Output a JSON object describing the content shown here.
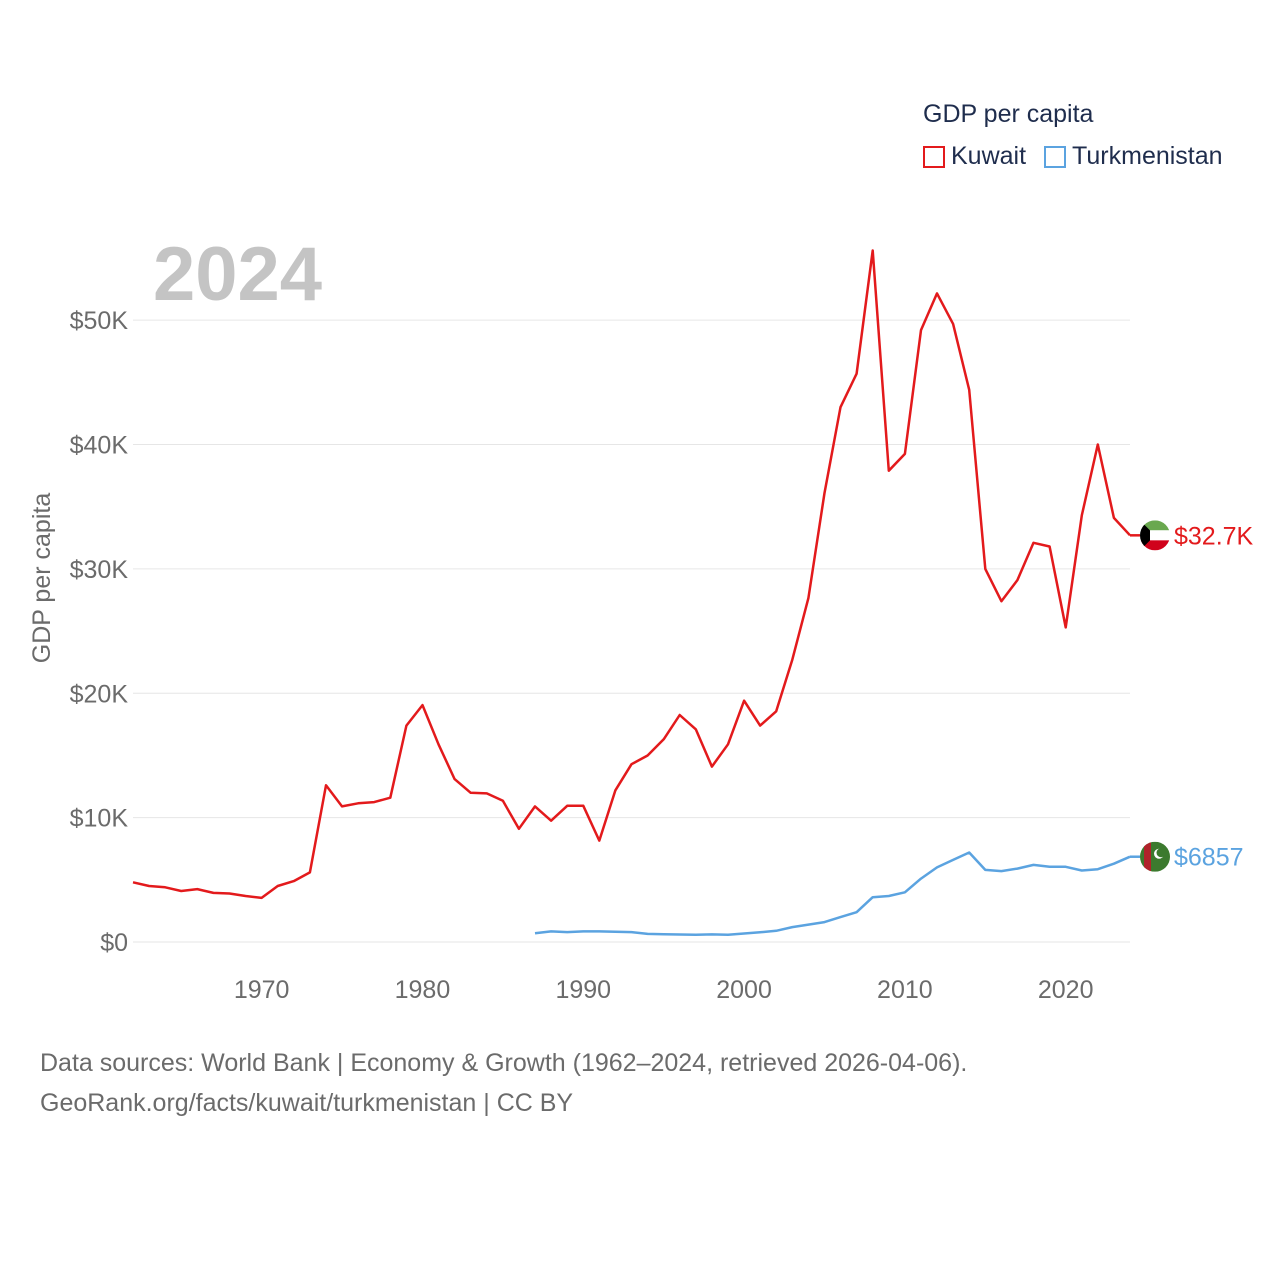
{
  "legend": {
    "title": "GDP per capita",
    "items": [
      {
        "label": "Kuwait",
        "color": "#e31a1c"
      },
      {
        "label": "Turkmenistan",
        "color": "#5ba3e0"
      }
    ]
  },
  "footer": {
    "line1": "Data sources: World Bank | Economy & Growth (1962–2024, retrieved 2026-04-06).",
    "line2": "GeoRank.org/facts/kuwait/turkmenistan | CC BY"
  },
  "chart_data": {
    "type": "line",
    "title": "2024",
    "xlabel": "",
    "ylabel": "GDP per capita",
    "xlim": [
      1962,
      2024
    ],
    "ylim": [
      0,
      55000
    ],
    "yticks": [
      0,
      10000,
      20000,
      30000,
      40000,
      50000
    ],
    "ytick_labels": [
      "$0",
      "$10K",
      "$20K",
      "$30K",
      "$40K",
      "$50K"
    ],
    "xticks": [
      1970,
      1980,
      1990,
      2000,
      2010,
      2020
    ],
    "xtick_labels": [
      "1970",
      "1980",
      "1990",
      "2000",
      "2010",
      "2020"
    ],
    "grid": true,
    "series": [
      {
        "name": "Kuwait",
        "color": "#e31a1c",
        "end_label": "$32.7K",
        "x": [
          1962,
          1963,
          1964,
          1965,
          1966,
          1967,
          1968,
          1969,
          1970,
          1971,
          1972,
          1973,
          1974,
          1975,
          1976,
          1977,
          1978,
          1979,
          1980,
          1981,
          1982,
          1983,
          1984,
          1985,
          1986,
          1987,
          1988,
          1989,
          1990,
          1991,
          1992,
          1993,
          1994,
          1995,
          1996,
          1997,
          1998,
          1999,
          2000,
          2001,
          2002,
          2003,
          2004,
          2005,
          2006,
          2007,
          2008,
          2009,
          2010,
          2011,
          2012,
          2013,
          2014,
          2015,
          2016,
          2017,
          2018,
          2019,
          2020,
          2021,
          2022,
          2023,
          2024
        ],
        "values": [
          4800,
          4500,
          4400,
          4100,
          4250,
          3950,
          3900,
          3700,
          3550,
          4500,
          4900,
          5600,
          12600,
          10900,
          11150,
          11250,
          11600,
          17400,
          19050,
          15900,
          13100,
          12000,
          11950,
          11350,
          9100,
          10900,
          9750,
          10950,
          10950,
          8150,
          12200,
          14300,
          15000,
          16300,
          18250,
          17100,
          14100,
          15900,
          19400,
          17400,
          18550,
          22700,
          27650,
          36100,
          43000,
          45700,
          55600,
          37900,
          39250,
          49200,
          52150,
          49700,
          44400,
          30000,
          27400,
          29100,
          32100,
          31800,
          25300,
          34300,
          40000,
          34100,
          32700
        ]
      },
      {
        "name": "Turkmenistan",
        "color": "#5ba3e0",
        "end_label": "$6857",
        "x": [
          1987,
          1988,
          1989,
          1990,
          1991,
          1992,
          1993,
          1994,
          1995,
          1996,
          1997,
          1998,
          1999,
          2000,
          2001,
          2002,
          2003,
          2004,
          2005,
          2006,
          2007,
          2008,
          2009,
          2010,
          2011,
          2012,
          2013,
          2014,
          2015,
          2016,
          2017,
          2018,
          2019,
          2020,
          2021,
          2022,
          2023,
          2024
        ],
        "values": [
          700,
          850,
          800,
          850,
          850,
          820,
          800,
          650,
          620,
          600,
          590,
          610,
          580,
          680,
          780,
          900,
          1200,
          1400,
          1600,
          2000,
          2400,
          3600,
          3700,
          4000,
          5100,
          6000,
          6600,
          7200,
          5800,
          5700,
          5900,
          6200,
          6050,
          6050,
          5750,
          5850,
          6300,
          6857
        ]
      }
    ]
  }
}
